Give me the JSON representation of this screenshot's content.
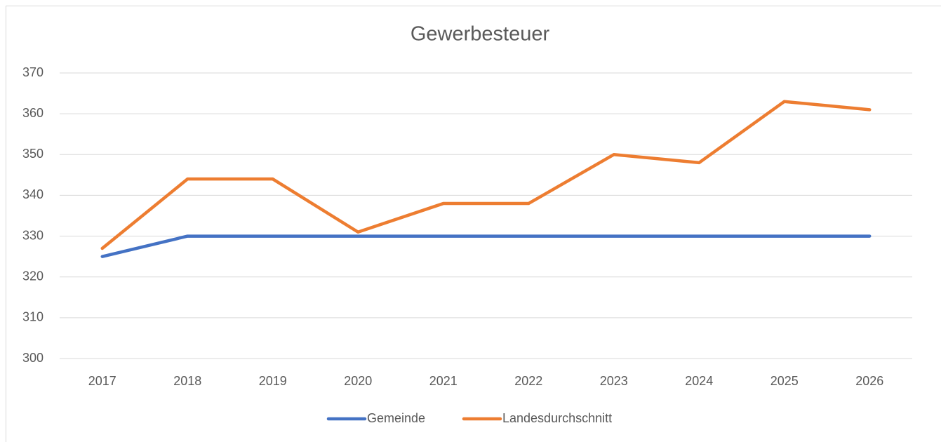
{
  "chart_data": {
    "type": "line",
    "title": "Gewerbesteuer",
    "categories": [
      "2017",
      "2018",
      "2019",
      "2020",
      "2021",
      "2022",
      "2023",
      "2024",
      "2025",
      "2026"
    ],
    "series": [
      {
        "name": "Gemeinde",
        "color": "#4472c4",
        "values": [
          325,
          330,
          330,
          330,
          330,
          330,
          330,
          330,
          330,
          330
        ]
      },
      {
        "name": "Landesdurchschnitt",
        "color": "#ed7d31",
        "values": [
          327,
          344,
          344,
          331,
          338,
          338,
          350,
          348,
          363,
          361
        ]
      }
    ],
    "ylim": [
      300,
      370
    ],
    "yticks": [
      300,
      310,
      320,
      330,
      340,
      350,
      360,
      370
    ],
    "grid": true,
    "legend": "bottom"
  }
}
